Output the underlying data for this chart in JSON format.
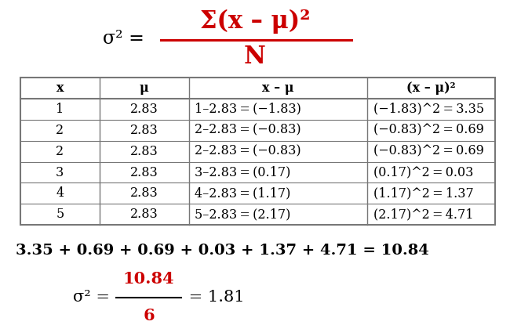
{
  "bg_color": "#ffffff",
  "text_color": "#000000",
  "red_color": "#cc0000",
  "table_border_color": "#777777",
  "formula_black": "σ² = ",
  "formula_red_num": "Σ(x – μ)²",
  "formula_red_den": "N",
  "headers": [
    "x",
    "μ",
    "x – μ",
    "(x – μ)²"
  ],
  "col1": [
    "1",
    "2",
    "2",
    "3",
    "4",
    "5"
  ],
  "col2": [
    "2.83",
    "2.83",
    "2.83",
    "2.83",
    "2.83",
    "2.83"
  ],
  "col3": [
    "1–2.83 = (−1.83)",
    "2–2.83 = (−0.83)",
    "2–2.83 = (−0.83)",
    "3–2.83 = (0.17)",
    "4–2.83 = (1.17)",
    "5–2.83 = (2.17)"
  ],
  "col4": [
    "(−1.83)^2 = 3.35",
    "(−0.83)^2 = 0.69",
    "(−0.83)^2 = 0.69",
    "(0.17)^2 = 0.03",
    "(1.17)^2 = 1.37",
    "(2.17)^2 = 4.71"
  ],
  "sum_line": "3.35 + 0.69 + 0.69 + 0.03 + 1.37 + 4.71 = 10.84",
  "final_black1": "σ² = ",
  "final_red_num": "10.84",
  "final_red_den": "6",
  "final_black2": " = 1.81",
  "fig_w": 6.5,
  "fig_h": 4.29,
  "dpi": 100
}
